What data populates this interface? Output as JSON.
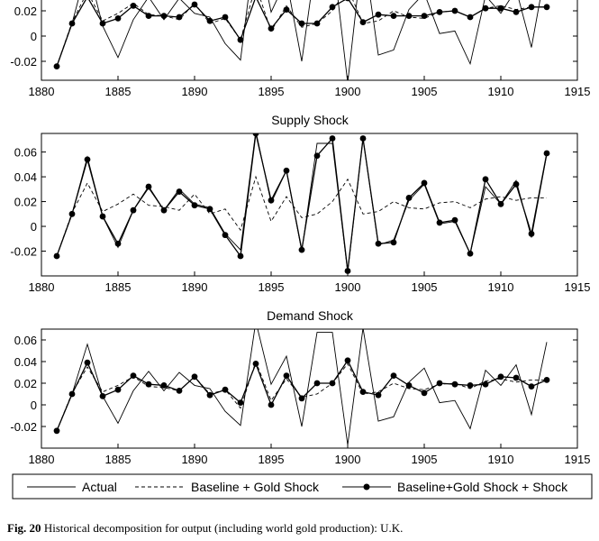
{
  "caption": {
    "label": "Fig. 20",
    "text": "Historical decomposition for output (including world gold production): U.K."
  },
  "legend": {
    "actual": "Actual",
    "baseline_gold": "Baseline + Gold Shock",
    "baseline_gold_shock": "Baseline+Gold Shock + Shock"
  },
  "chart_data": [
    {
      "type": "line",
      "title": "",
      "xlim": [
        1880,
        1915
      ],
      "ylim": [
        -0.035,
        0.03
      ],
      "x_ticks": [
        1880,
        1885,
        1890,
        1895,
        1900,
        1905,
        1910,
        1915
      ],
      "y_ticks": [
        -0.02,
        0,
        0.02
      ],
      "y_tick_labels": [
        "-0.02",
        "0",
        "0.02"
      ],
      "x": [
        1881,
        1882,
        1883,
        1884,
        1885,
        1886,
        1887,
        1888,
        1889,
        1890,
        1891,
        1892,
        1893,
        1894,
        1895,
        1896,
        1897,
        1898,
        1899,
        1900,
        1901,
        1902,
        1903,
        1904,
        1905,
        1906,
        1907,
        1908,
        1909,
        1910,
        1911,
        1912,
        1913
      ],
      "series": [
        {
          "name": "Actual",
          "style": "solid",
          "values": [
            -0.024,
            0.01,
            0.056,
            0.008,
            -0.017,
            0.013,
            0.031,
            0.013,
            0.03,
            0.018,
            0.015,
            -0.006,
            -0.019,
            0.077,
            0.019,
            0.045,
            -0.02,
            0.067,
            0.067,
            -0.037,
            0.071,
            -0.015,
            -0.011,
            0.021,
            0.034,
            0.002,
            0.004,
            -0.022,
            0.032,
            0.018,
            0.037,
            -0.009,
            0.058
          ]
        },
        {
          "name": "Baseline + Gold Shock",
          "style": "dashed",
          "values": [
            -0.024,
            0.011,
            0.035,
            0.012,
            0.018,
            0.026,
            0.017,
            0.016,
            0.013,
            0.026,
            0.01,
            0.014,
            -0.003,
            0.04,
            0.004,
            0.024,
            0.007,
            0.01,
            0.02,
            0.038,
            0.01,
            0.012,
            0.02,
            0.015,
            0.014,
            0.019,
            0.02,
            0.015,
            0.022,
            0.024,
            0.021,
            0.023,
            0.023
          ]
        },
        {
          "name": "Baseline+Gold Shock + Shock",
          "style": "dots",
          "values": [
            -0.024,
            0.01,
            0.031,
            0.01,
            0.014,
            0.024,
            0.016,
            0.016,
            0.015,
            0.025,
            0.012,
            0.015,
            -0.003,
            0.031,
            0.006,
            0.021,
            0.01,
            0.01,
            0.023,
            0.03,
            0.011,
            0.017,
            0.016,
            0.016,
            0.016,
            0.019,
            0.02,
            0.015,
            0.022,
            0.022,
            0.019,
            0.023,
            0.023
          ]
        }
      ]
    },
    {
      "type": "line",
      "title": "Supply Shock",
      "xlim": [
        1880,
        1915
      ],
      "ylim": [
        -0.04,
        0.075
      ],
      "x_ticks": [
        1880,
        1885,
        1890,
        1895,
        1900,
        1905,
        1910,
        1915
      ],
      "y_ticks": [
        -0.02,
        0,
        0.02,
        0.04,
        0.06
      ],
      "y_tick_labels": [
        "-0.02",
        "0",
        "0.02",
        "0.04",
        "0.06"
      ],
      "x": [
        1881,
        1882,
        1883,
        1884,
        1885,
        1886,
        1887,
        1888,
        1889,
        1890,
        1891,
        1892,
        1893,
        1894,
        1895,
        1896,
        1897,
        1898,
        1899,
        1900,
        1901,
        1902,
        1903,
        1904,
        1905,
        1906,
        1907,
        1908,
        1909,
        1910,
        1911,
        1912,
        1913
      ],
      "series": [
        {
          "name": "Actual",
          "style": "solid",
          "values": [
            -0.024,
            0.01,
            0.056,
            0.008,
            -0.017,
            0.013,
            0.031,
            0.013,
            0.03,
            0.018,
            0.015,
            -0.006,
            -0.019,
            0.077,
            0.019,
            0.045,
            -0.02,
            0.067,
            0.067,
            -0.037,
            0.071,
            -0.015,
            -0.011,
            0.021,
            0.034,
            0.002,
            0.004,
            -0.022,
            0.032,
            0.018,
            0.037,
            -0.009,
            0.058
          ]
        },
        {
          "name": "Baseline + Gold Shock",
          "style": "dashed",
          "values": [
            -0.024,
            0.011,
            0.035,
            0.012,
            0.018,
            0.026,
            0.017,
            0.016,
            0.013,
            0.026,
            0.01,
            0.014,
            -0.003,
            0.04,
            0.004,
            0.024,
            0.007,
            0.01,
            0.02,
            0.038,
            0.01,
            0.012,
            0.02,
            0.015,
            0.014,
            0.019,
            0.02,
            0.015,
            0.022,
            0.024,
            0.021,
            0.023,
            0.023
          ]
        },
        {
          "name": "Baseline+Gold Shock + Shock",
          "style": "dots",
          "values": [
            -0.024,
            0.01,
            0.054,
            0.008,
            -0.014,
            0.013,
            0.032,
            0.013,
            0.028,
            0.017,
            0.014,
            -0.007,
            -0.024,
            0.075,
            0.021,
            0.045,
            -0.019,
            0.057,
            0.071,
            -0.036,
            0.071,
            -0.014,
            -0.013,
            0.023,
            0.035,
            0.003,
            0.005,
            -0.022,
            0.038,
            0.018,
            0.034,
            -0.006,
            0.059
          ]
        }
      ]
    },
    {
      "type": "line",
      "title": "Demand Shock",
      "xlim": [
        1880,
        1915
      ],
      "ylim": [
        -0.04,
        0.07
      ],
      "x_ticks": [
        1880,
        1885,
        1890,
        1895,
        1900,
        1905,
        1910,
        1915
      ],
      "y_ticks": [
        -0.02,
        0,
        0.02,
        0.04,
        0.06
      ],
      "y_tick_labels": [
        "-0.02",
        "0",
        "0.02",
        "0.04",
        "0.06"
      ],
      "x": [
        1881,
        1882,
        1883,
        1884,
        1885,
        1886,
        1887,
        1888,
        1889,
        1890,
        1891,
        1892,
        1893,
        1894,
        1895,
        1896,
        1897,
        1898,
        1899,
        1900,
        1901,
        1902,
        1903,
        1904,
        1905,
        1906,
        1907,
        1908,
        1909,
        1910,
        1911,
        1912,
        1913
      ],
      "series": [
        {
          "name": "Actual",
          "style": "solid",
          "values": [
            -0.024,
            0.01,
            0.056,
            0.008,
            -0.017,
            0.013,
            0.031,
            0.013,
            0.03,
            0.018,
            0.015,
            -0.006,
            -0.019,
            0.077,
            0.019,
            0.045,
            -0.02,
            0.067,
            0.067,
            -0.037,
            0.071,
            -0.015,
            -0.011,
            0.021,
            0.034,
            0.002,
            0.004,
            -0.022,
            0.032,
            0.018,
            0.037,
            -0.009,
            0.058
          ]
        },
        {
          "name": "Baseline + Gold Shock",
          "style": "dashed",
          "values": [
            -0.024,
            0.011,
            0.035,
            0.012,
            0.018,
            0.026,
            0.017,
            0.016,
            0.013,
            0.026,
            0.01,
            0.014,
            -0.003,
            0.04,
            0.004,
            0.024,
            0.007,
            0.01,
            0.02,
            0.038,
            0.01,
            0.012,
            0.02,
            0.015,
            0.014,
            0.019,
            0.02,
            0.015,
            0.022,
            0.024,
            0.021,
            0.023,
            0.023
          ]
        },
        {
          "name": "Baseline+Gold Shock + Shock",
          "style": "dots",
          "values": [
            -0.024,
            0.01,
            0.039,
            0.008,
            0.014,
            0.027,
            0.019,
            0.018,
            0.013,
            0.026,
            0.009,
            0.014,
            0.002,
            0.038,
            0.0,
            0.027,
            0.006,
            0.02,
            0.02,
            0.041,
            0.012,
            0.009,
            0.027,
            0.018,
            0.011,
            0.02,
            0.019,
            0.018,
            0.019,
            0.026,
            0.025,
            0.017,
            0.023
          ]
        }
      ]
    }
  ]
}
